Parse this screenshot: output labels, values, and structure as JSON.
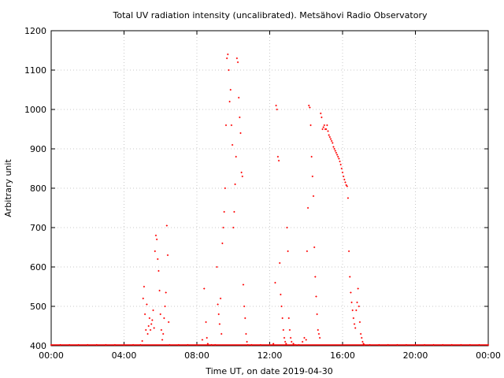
{
  "chart_data": {
    "type": "scatter",
    "title": "Total UV radiation intensity (uncalibrated). Metsähovi Radio Observatory",
    "xlabel": "Time UT, on date 2019-04-30",
    "ylabel": "Arbitrary unit",
    "x_unit": "hours UT",
    "xlim": [
      0,
      24
    ],
    "ylim": [
      400,
      1200
    ],
    "x_ticks": [
      0,
      4,
      8,
      12,
      16,
      20,
      24
    ],
    "x_tick_labels": [
      "00:00",
      "04:00",
      "08:00",
      "12:00",
      "16:00",
      "20:00",
      "00:00"
    ],
    "y_ticks": [
      400,
      500,
      600,
      700,
      800,
      900,
      1000,
      1100,
      1200
    ],
    "y_tick_labels": [
      "400",
      "500",
      "600",
      "700",
      "800",
      "900",
      "1000",
      "1100",
      "1200"
    ],
    "grid": true,
    "marker_color": "#ff0000",
    "series": [
      {
        "values": [
          [
            0.0,
            402
          ],
          [
            0.5,
            402
          ],
          [
            1.0,
            402
          ],
          [
            1.5,
            402
          ],
          [
            2.0,
            402
          ],
          [
            2.5,
            402
          ],
          [
            3.0,
            402
          ],
          [
            3.5,
            402
          ],
          [
            4.0,
            402
          ],
          [
            4.5,
            402
          ],
          [
            4.9,
            402
          ],
          [
            5.0,
            412
          ],
          [
            5.05,
            520
          ],
          [
            5.1,
            550
          ],
          [
            5.15,
            480
          ],
          [
            5.2,
            440
          ],
          [
            5.25,
            505
          ],
          [
            5.3,
            430
          ],
          [
            5.35,
            450
          ],
          [
            5.4,
            470
          ],
          [
            5.45,
            440
          ],
          [
            5.5,
            455
          ],
          [
            5.55,
            465
          ],
          [
            5.6,
            490
          ],
          [
            5.65,
            445
          ],
          [
            5.7,
            640
          ],
          [
            5.75,
            680
          ],
          [
            5.8,
            670
          ],
          [
            5.85,
            620
          ],
          [
            5.9,
            590
          ],
          [
            5.95,
            540
          ],
          [
            6.0,
            480
          ],
          [
            6.05,
            440
          ],
          [
            6.1,
            415
          ],
          [
            6.15,
            430
          ],
          [
            6.2,
            470
          ],
          [
            6.25,
            500
          ],
          [
            6.3,
            535
          ],
          [
            6.35,
            705
          ],
          [
            6.4,
            630
          ],
          [
            6.45,
            460
          ],
          [
            6.5,
            402
          ],
          [
            7.0,
            402
          ],
          [
            7.5,
            402
          ],
          [
            8.0,
            402
          ],
          [
            8.3,
            415
          ],
          [
            8.4,
            545
          ],
          [
            8.5,
            460
          ],
          [
            8.55,
            420
          ],
          [
            8.6,
            405
          ],
          [
            8.8,
            402
          ],
          [
            9.0,
            402
          ],
          [
            9.1,
            600
          ],
          [
            9.15,
            505
          ],
          [
            9.2,
            480
          ],
          [
            9.25,
            455
          ],
          [
            9.3,
            520
          ],
          [
            9.35,
            430
          ],
          [
            9.4,
            660
          ],
          [
            9.45,
            700
          ],
          [
            9.5,
            740
          ],
          [
            9.55,
            800
          ],
          [
            9.6,
            960
          ],
          [
            9.65,
            1130
          ],
          [
            9.7,
            1140
          ],
          [
            9.75,
            1100
          ],
          [
            9.8,
            1020
          ],
          [
            9.85,
            1050
          ],
          [
            9.9,
            960
          ],
          [
            9.95,
            910
          ],
          [
            10.0,
            700
          ],
          [
            10.05,
            740
          ],
          [
            10.1,
            810
          ],
          [
            10.15,
            880
          ],
          [
            10.2,
            1130
          ],
          [
            10.25,
            1120
          ],
          [
            10.3,
            1030
          ],
          [
            10.35,
            980
          ],
          [
            10.4,
            940
          ],
          [
            10.45,
            840
          ],
          [
            10.5,
            830
          ],
          [
            10.55,
            555
          ],
          [
            10.6,
            500
          ],
          [
            10.65,
            470
          ],
          [
            10.7,
            430
          ],
          [
            10.75,
            410
          ],
          [
            10.8,
            402
          ],
          [
            11.0,
            402
          ],
          [
            11.5,
            402
          ],
          [
            12.0,
            402
          ],
          [
            12.2,
            405
          ],
          [
            12.3,
            560
          ],
          [
            12.35,
            1010
          ],
          [
            12.4,
            1000
          ],
          [
            12.45,
            880
          ],
          [
            12.5,
            870
          ],
          [
            12.55,
            610
          ],
          [
            12.6,
            530
          ],
          [
            12.65,
            500
          ],
          [
            12.7,
            470
          ],
          [
            12.75,
            440
          ],
          [
            12.8,
            420
          ],
          [
            12.85,
            410
          ],
          [
            12.9,
            405
          ],
          [
            12.95,
            700
          ],
          [
            13.0,
            640
          ],
          [
            13.05,
            470
          ],
          [
            13.1,
            440
          ],
          [
            13.15,
            420
          ],
          [
            13.2,
            410
          ],
          [
            13.3,
            405
          ],
          [
            13.4,
            402
          ],
          [
            13.6,
            402
          ],
          [
            13.8,
            410
          ],
          [
            13.9,
            420
          ],
          [
            14.0,
            415
          ],
          [
            14.05,
            640
          ],
          [
            14.1,
            750
          ],
          [
            14.15,
            1010
          ],
          [
            14.2,
            1005
          ],
          [
            14.25,
            960
          ],
          [
            14.3,
            880
          ],
          [
            14.35,
            830
          ],
          [
            14.4,
            780
          ],
          [
            14.45,
            650
          ],
          [
            14.5,
            575
          ],
          [
            14.55,
            525
          ],
          [
            14.6,
            480
          ],
          [
            14.65,
            440
          ],
          [
            14.7,
            430
          ],
          [
            14.75,
            420
          ],
          [
            14.8,
            990
          ],
          [
            14.85,
            980
          ],
          [
            14.9,
            950
          ],
          [
            14.95,
            955
          ],
          [
            15.0,
            960
          ],
          [
            15.05,
            950
          ],
          [
            15.1,
            950
          ],
          [
            15.15,
            960
          ],
          [
            15.2,
            945
          ],
          [
            15.25,
            935
          ],
          [
            15.3,
            930
          ],
          [
            15.35,
            925
          ],
          [
            15.4,
            920
          ],
          [
            15.45,
            915
          ],
          [
            15.5,
            905
          ],
          [
            15.55,
            900
          ],
          [
            15.6,
            895
          ],
          [
            15.65,
            890
          ],
          [
            15.7,
            885
          ],
          [
            15.75,
            880
          ],
          [
            15.8,
            875
          ],
          [
            15.85,
            868
          ],
          [
            15.9,
            860
          ],
          [
            15.95,
            850
          ],
          [
            16.0,
            840
          ],
          [
            16.05,
            830
          ],
          [
            16.1,
            822
          ],
          [
            16.15,
            815
          ],
          [
            16.2,
            808
          ],
          [
            16.25,
            805
          ],
          [
            16.3,
            775
          ],
          [
            16.35,
            640
          ],
          [
            16.4,
            575
          ],
          [
            16.45,
            535
          ],
          [
            16.5,
            510
          ],
          [
            16.55,
            490
          ],
          [
            16.6,
            470
          ],
          [
            16.65,
            455
          ],
          [
            16.7,
            445
          ],
          [
            16.75,
            490
          ],
          [
            16.8,
            510
          ],
          [
            16.85,
            545
          ],
          [
            16.9,
            500
          ],
          [
            16.95,
            460
          ],
          [
            17.0,
            430
          ],
          [
            17.05,
            420
          ],
          [
            17.1,
            410
          ],
          [
            17.15,
            405
          ],
          [
            17.2,
            402
          ],
          [
            17.5,
            402
          ],
          [
            18.0,
            402
          ],
          [
            18.5,
            402
          ],
          [
            19.0,
            402
          ],
          [
            19.5,
            402
          ],
          [
            20.0,
            402
          ],
          [
            20.5,
            402
          ],
          [
            21.0,
            402
          ],
          [
            21.5,
            402
          ],
          [
            22.0,
            402
          ],
          [
            22.5,
            402
          ],
          [
            23.0,
            402
          ],
          [
            23.5,
            402
          ],
          [
            24.0,
            402
          ]
        ]
      }
    ]
  }
}
